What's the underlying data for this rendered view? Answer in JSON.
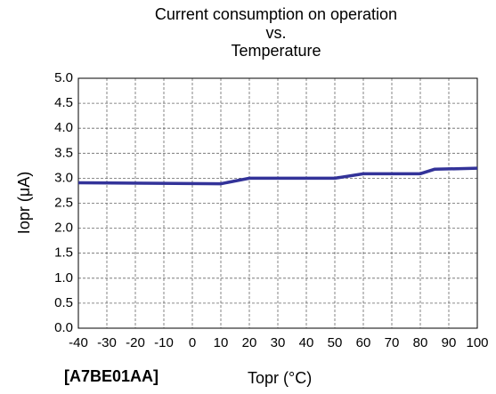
{
  "chart_data": {
    "type": "line",
    "title": [
      "Current consumption on operation",
      "vs.",
      "Temperature"
    ],
    "x_label": "Topr (°C)",
    "y_label": "Iopr (μA)",
    "annotation": "[A7BE01AA]",
    "x": [
      -40,
      10,
      20,
      50,
      60,
      80,
      85,
      100
    ],
    "series": [
      {
        "name": "Iopr",
        "color": "#333399",
        "values": [
          2.91,
          2.89,
          3.0,
          3.0,
          3.09,
          3.09,
          3.18,
          3.2
        ]
      }
    ],
    "xlim": [
      -40,
      100
    ],
    "xticks": [
      -40,
      -30,
      -20,
      -10,
      0,
      10,
      20,
      30,
      40,
      50,
      60,
      70,
      80,
      90,
      100
    ],
    "ylim": [
      0,
      5
    ],
    "yticks": [
      {
        "value": 0,
        "label": "0.0"
      },
      0.5,
      {
        "value": 1,
        "label": "1.0"
      },
      1.5,
      {
        "value": 2,
        "label": "2.0"
      },
      2.5,
      {
        "value": 3,
        "label": "3.0"
      },
      3.5,
      {
        "value": 4,
        "label": "4.0"
      },
      4.5,
      {
        "value": 5,
        "label": "5.0"
      }
    ],
    "grid": true
  }
}
